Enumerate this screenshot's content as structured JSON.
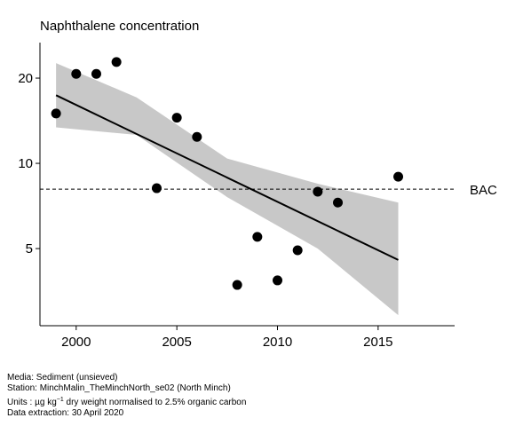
{
  "chart_data": {
    "type": "scatter",
    "title": "Naphthalene concentration",
    "x": [
      1999,
      2000,
      2001,
      2002,
      2004,
      2005,
      2006,
      2008,
      2009,
      2010,
      2011,
      2012,
      2013,
      2016
    ],
    "values": [
      15.0,
      20.7,
      20.7,
      22.8,
      8.17,
      14.5,
      12.4,
      3.72,
      5.5,
      3.86,
      4.93,
      7.94,
      7.27,
      8.97
    ],
    "color": "#000000",
    "xlim": [
      1998.2,
      2018.8
    ],
    "ylim": [
      2.67,
      26.7
    ],
    "y_log_scale": true,
    "xticks": [
      2000,
      2005,
      2010,
      2015
    ],
    "yticks": [
      5,
      10,
      20
    ],
    "trend": {
      "x": [
        1999,
        2016
      ],
      "values": [
        17.4,
        4.56
      ],
      "color": "#000000"
    },
    "band": {
      "x": [
        1999,
        2003,
        2007.5,
        2012,
        2016
      ],
      "upper": [
        22.6,
        17.1,
        10.4,
        8.47,
        7.27
      ],
      "lower": [
        13.4,
        12.6,
        7.6,
        5.0,
        2.91
      ],
      "color": "#c8c8c8"
    },
    "reference_line": {
      "label": "BAC",
      "value": 8.11
    },
    "footer": {
      "media": "Media: Sediment (unsieved)",
      "station": "Station: MinchMalin_TheMinchNorth_se02 (North Minch)",
      "units": [
        "Units : µg kg",
        "−1",
        " dry weight normalised to 2.5% organic carbon"
      ],
      "extraction": "Data extraction: 30 April 2020"
    }
  }
}
